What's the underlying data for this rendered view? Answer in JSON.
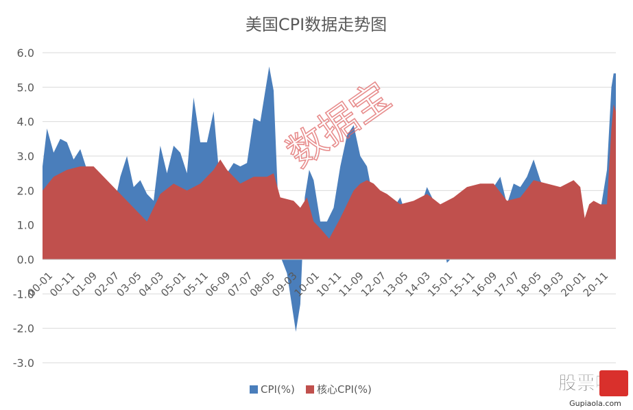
{
  "chart_data": {
    "type": "area",
    "title": "美国CPI数据走势图",
    "xlabel": "",
    "ylabel": "",
    "ylim": [
      -3.0,
      6.0
    ],
    "y_ticks": [
      "6.0",
      "5.0",
      "4.0",
      "3.0",
      "2.0",
      "1.0",
      "0.0",
      "-1.0",
      "-2.0",
      "-3.0"
    ],
    "x_ticks": [
      "00-01",
      "00-11",
      "01-09",
      "02-07",
      "03-05",
      "04-03",
      "05-01",
      "05-11",
      "06-09",
      "07-07",
      "08-05",
      "09-03",
      "10-01",
      "10-11",
      "11-09",
      "12-07",
      "13-05",
      "14-03",
      "15-01",
      "15-11",
      "16-09",
      "17-07",
      "18-05",
      "19-03",
      "20-01",
      "20-11"
    ],
    "x_start": "2000-01",
    "x_end": "2021-07",
    "x_tick_interval_months": 10,
    "grid": true,
    "legend_position": "bottom",
    "series": [
      {
        "name": "CPI(%)",
        "color": "#4a7ebb",
        "points": [
          [
            "2000-01",
            2.7
          ],
          [
            "2000-03",
            3.8
          ],
          [
            "2000-06",
            3.1
          ],
          [
            "2000-09",
            3.5
          ],
          [
            "2000-12",
            3.4
          ],
          [
            "2001-03",
            2.9
          ],
          [
            "2001-06",
            3.2
          ],
          [
            "2001-09",
            2.6
          ],
          [
            "2001-12",
            1.6
          ],
          [
            "2002-03",
            1.5
          ],
          [
            "2002-06",
            1.1
          ],
          [
            "2002-09",
            1.5
          ],
          [
            "2002-12",
            2.4
          ],
          [
            "2003-03",
            3.0
          ],
          [
            "2003-06",
            2.1
          ],
          [
            "2003-09",
            2.3
          ],
          [
            "2003-12",
            1.9
          ],
          [
            "2004-03",
            1.7
          ],
          [
            "2004-06",
            3.3
          ],
          [
            "2004-09",
            2.5
          ],
          [
            "2004-12",
            3.3
          ],
          [
            "2005-03",
            3.1
          ],
          [
            "2005-06",
            2.5
          ],
          [
            "2005-09",
            4.7
          ],
          [
            "2005-12",
            3.4
          ],
          [
            "2006-03",
            3.4
          ],
          [
            "2006-06",
            4.3
          ],
          [
            "2006-09",
            2.1
          ],
          [
            "2006-12",
            2.5
          ],
          [
            "2007-03",
            2.8
          ],
          [
            "2007-06",
            2.7
          ],
          [
            "2007-09",
            2.8
          ],
          [
            "2007-12",
            4.1
          ],
          [
            "2008-03",
            4.0
          ],
          [
            "2008-07",
            5.6
          ],
          [
            "2008-09",
            4.9
          ],
          [
            "2008-12",
            0.1
          ],
          [
            "2009-03",
            -0.4
          ],
          [
            "2009-07",
            -2.1
          ],
          [
            "2009-09",
            -1.3
          ],
          [
            "2009-11",
            1.8
          ],
          [
            "2010-01",
            2.6
          ],
          [
            "2010-03",
            2.3
          ],
          [
            "2010-06",
            1.1
          ],
          [
            "2010-09",
            1.1
          ],
          [
            "2010-12",
            1.5
          ],
          [
            "2011-03",
            2.7
          ],
          [
            "2011-06",
            3.6
          ],
          [
            "2011-09",
            3.9
          ],
          [
            "2011-12",
            3.0
          ],
          [
            "2012-03",
            2.7
          ],
          [
            "2012-06",
            1.7
          ],
          [
            "2012-09",
            2.0
          ],
          [
            "2012-12",
            1.7
          ],
          [
            "2013-03",
            1.5
          ],
          [
            "2013-06",
            1.8
          ],
          [
            "2013-09",
            1.2
          ],
          [
            "2013-12",
            1.5
          ],
          [
            "2014-03",
            1.5
          ],
          [
            "2014-06",
            2.1
          ],
          [
            "2014-09",
            1.7
          ],
          [
            "2014-12",
            0.8
          ],
          [
            "2015-03",
            -0.1
          ],
          [
            "2015-06",
            0.1
          ],
          [
            "2015-09",
            0.0
          ],
          [
            "2015-12",
            0.7
          ],
          [
            "2016-03",
            0.9
          ],
          [
            "2016-06",
            1.0
          ],
          [
            "2016-09",
            1.5
          ],
          [
            "2016-12",
            2.1
          ],
          [
            "2017-03",
            2.4
          ],
          [
            "2017-06",
            1.6
          ],
          [
            "2017-09",
            2.2
          ],
          [
            "2017-12",
            2.1
          ],
          [
            "2018-03",
            2.4
          ],
          [
            "2018-06",
            2.9
          ],
          [
            "2018-09",
            2.3
          ],
          [
            "2018-12",
            1.9
          ],
          [
            "2019-03",
            1.9
          ],
          [
            "2019-06",
            1.6
          ],
          [
            "2019-09",
            1.7
          ],
          [
            "2019-12",
            2.3
          ],
          [
            "2020-03",
            1.5
          ],
          [
            "2020-05",
            0.1
          ],
          [
            "2020-07",
            1.0
          ],
          [
            "2020-09",
            1.4
          ],
          [
            "2020-12",
            1.4
          ],
          [
            "2021-03",
            2.6
          ],
          [
            "2021-05",
            5.0
          ],
          [
            "2021-06",
            5.4
          ],
          [
            "2021-07",
            5.4
          ]
        ]
      },
      {
        "name": "核心CPI(%)",
        "color": "#c0504d",
        "points": [
          [
            "2000-01",
            2.0
          ],
          [
            "2000-06",
            2.4
          ],
          [
            "2000-12",
            2.6
          ],
          [
            "2001-06",
            2.7
          ],
          [
            "2001-12",
            2.7
          ],
          [
            "2002-06",
            2.3
          ],
          [
            "2002-12",
            1.9
          ],
          [
            "2003-06",
            1.5
          ],
          [
            "2003-12",
            1.1
          ],
          [
            "2004-06",
            1.9
          ],
          [
            "2004-12",
            2.2
          ],
          [
            "2005-06",
            2.0
          ],
          [
            "2005-12",
            2.2
          ],
          [
            "2006-06",
            2.6
          ],
          [
            "2006-09",
            2.9
          ],
          [
            "2006-12",
            2.6
          ],
          [
            "2007-06",
            2.2
          ],
          [
            "2007-12",
            2.4
          ],
          [
            "2008-06",
            2.4
          ],
          [
            "2008-09",
            2.5
          ],
          [
            "2008-12",
            1.8
          ],
          [
            "2009-06",
            1.7
          ],
          [
            "2009-09",
            1.5
          ],
          [
            "2009-12",
            1.8
          ],
          [
            "2010-03",
            1.1
          ],
          [
            "2010-06",
            0.9
          ],
          [
            "2010-10",
            0.6
          ],
          [
            "2011-03",
            1.2
          ],
          [
            "2011-06",
            1.6
          ],
          [
            "2011-09",
            2.0
          ],
          [
            "2011-12",
            2.2
          ],
          [
            "2012-03",
            2.3
          ],
          [
            "2012-06",
            2.2
          ],
          [
            "2012-09",
            2.0
          ],
          [
            "2012-12",
            1.9
          ],
          [
            "2013-06",
            1.6
          ],
          [
            "2013-12",
            1.7
          ],
          [
            "2014-06",
            1.9
          ],
          [
            "2014-12",
            1.6
          ],
          [
            "2015-06",
            1.8
          ],
          [
            "2015-12",
            2.1
          ],
          [
            "2016-06",
            2.2
          ],
          [
            "2016-12",
            2.2
          ],
          [
            "2017-06",
            1.7
          ],
          [
            "2017-12",
            1.8
          ],
          [
            "2018-06",
            2.3
          ],
          [
            "2018-12",
            2.2
          ],
          [
            "2019-06",
            2.1
          ],
          [
            "2019-12",
            2.3
          ],
          [
            "2020-03",
            2.1
          ],
          [
            "2020-05",
            1.2
          ],
          [
            "2020-07",
            1.6
          ],
          [
            "2020-09",
            1.7
          ],
          [
            "2020-12",
            1.6
          ],
          [
            "2021-03",
            1.6
          ],
          [
            "2021-05",
            3.8
          ],
          [
            "2021-06",
            4.5
          ],
          [
            "2021-07",
            4.3
          ]
        ]
      }
    ]
  },
  "watermark": {
    "text": "数据宝",
    "color": "#e06666"
  },
  "logo": {
    "text": "股票啦",
    "url_text": "Gupiaola.com"
  }
}
